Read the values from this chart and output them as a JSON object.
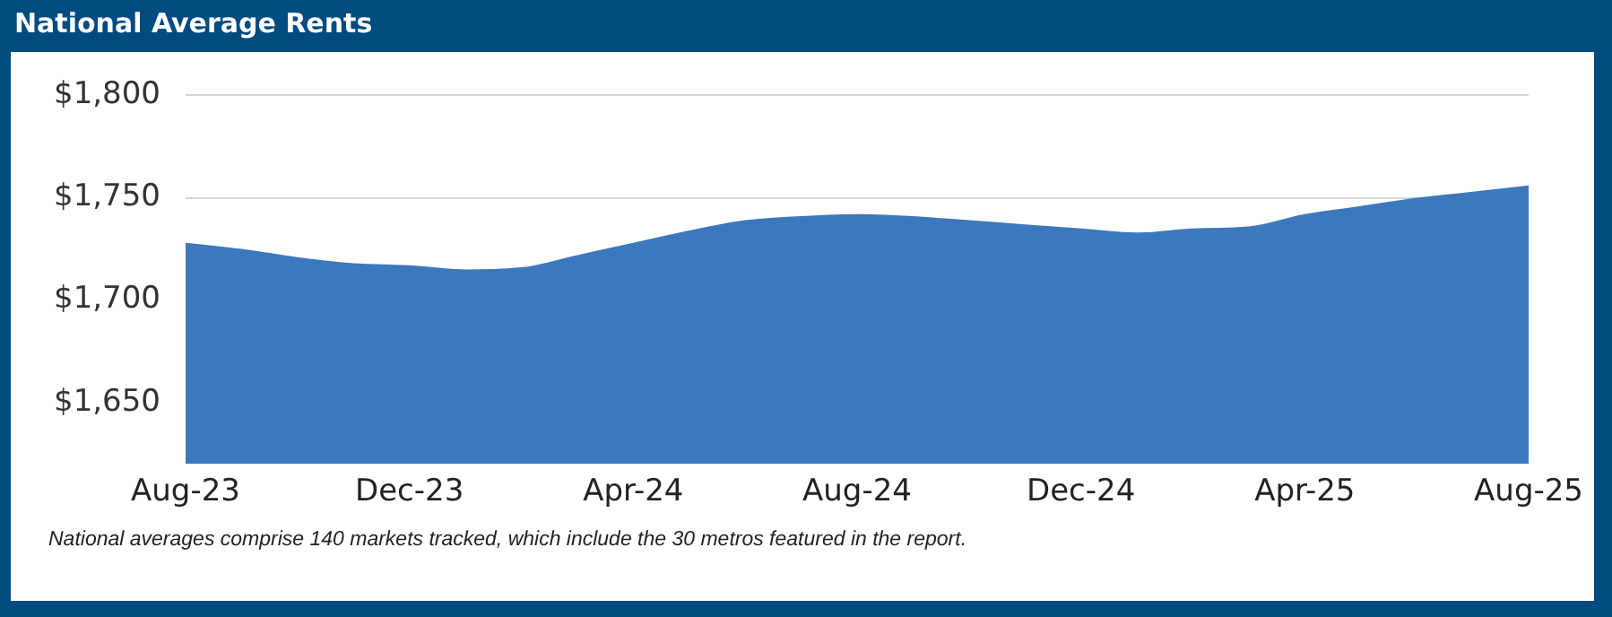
{
  "chart_data": {
    "type": "area",
    "title": "National Average Rents",
    "categories": [
      "Aug-23",
      null,
      null,
      null,
      "Dec-23",
      null,
      null,
      null,
      "Apr-24",
      null,
      null,
      null,
      "Aug-24",
      null,
      null,
      null,
      "Dec-24",
      null,
      null,
      null,
      "Apr-25",
      null,
      null,
      null,
      "Aug-25"
    ],
    "series": [
      {
        "color": "#3b78bd",
        "values": [
          1728,
          1725,
          1721,
          1718,
          1717,
          1715,
          1716,
          1722,
          1728,
          1734,
          1739,
          1741,
          1742,
          1741,
          1739,
          1737,
          1735,
          1733,
          1735,
          1736,
          1742,
          1746,
          1750,
          1753,
          1756
        ]
      }
    ],
    "ylim": [
      1620,
      1800
    ],
    "yticks": [
      {
        "value": 1650,
        "label": "$1,650"
      },
      {
        "value": 1700,
        "label": "$1,700"
      },
      {
        "value": 1750,
        "label": "$1,750"
      },
      {
        "value": 1800,
        "label": "$1,800"
      }
    ],
    "grid": "y",
    "legend": false,
    "marker": "none",
    "annotations": [
      "National averages comprise 140 markets tracked, which include the 30 metros featured in the report."
    ]
  }
}
